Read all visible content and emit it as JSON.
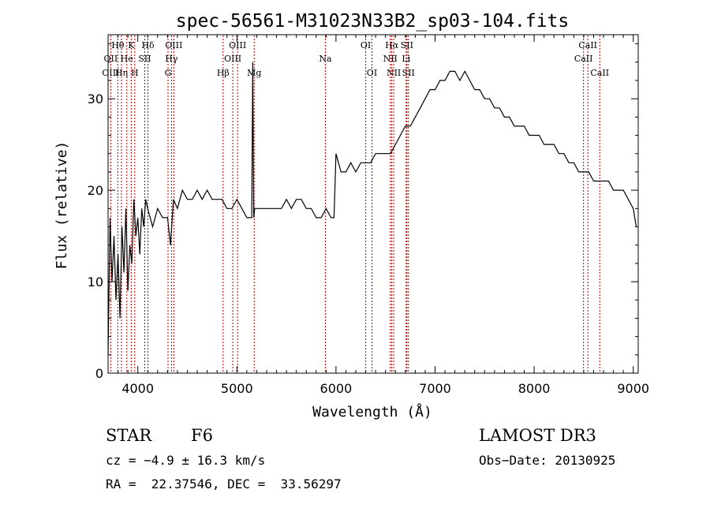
{
  "chart_data": {
    "type": "line",
    "title": "spec-56561-M31023N33B2_sp03-104.fits",
    "xlabel": "Wavelength (Å)",
    "ylabel": "Flux (relative)",
    "xlim": [
      3700,
      9050
    ],
    "ylim": [
      0,
      37
    ],
    "x_ticks": [
      4000,
      5000,
      6000,
      7000,
      8000,
      9000
    ],
    "y_ticks": [
      0,
      10,
      20,
      30
    ],
    "series": [
      {
        "name": "spectrum",
        "x": [
          3700,
          3720,
          3740,
          3760,
          3780,
          3800,
          3820,
          3840,
          3860,
          3880,
          3900,
          3920,
          3940,
          3960,
          3980,
          4000,
          4020,
          4040,
          4060,
          4080,
          4100,
          4150,
          4200,
          4250,
          4300,
          4330,
          4360,
          4400,
          4450,
          4500,
          4550,
          4600,
          4650,
          4700,
          4750,
          4800,
          4850,
          4900,
          4950,
          5000,
          5050,
          5100,
          5150,
          5160,
          5170,
          5180,
          5200,
          5250,
          5300,
          5350,
          5400,
          5450,
          5500,
          5550,
          5600,
          5650,
          5700,
          5750,
          5800,
          5850,
          5900,
          5950,
          5980,
          6000,
          6050,
          6100,
          6150,
          6200,
          6250,
          6300,
          6350,
          6400,
          6450,
          6500,
          6550,
          6600,
          6650,
          6700,
          6750,
          6800,
          6850,
          6900,
          6950,
          7000,
          7050,
          7100,
          7150,
          7200,
          7250,
          7300,
          7350,
          7400,
          7450,
          7500,
          7550,
          7600,
          7650,
          7700,
          7750,
          7800,
          7850,
          7900,
          7950,
          8000,
          8050,
          8100,
          8150,
          8200,
          8250,
          8300,
          8350,
          8400,
          8450,
          8500,
          8550,
          8600,
          8650,
          8700,
          8750,
          8800,
          8850,
          8900,
          8950,
          9000,
          9030
        ],
        "y": [
          2,
          17,
          10,
          15,
          8,
          13,
          6,
          16,
          11,
          18,
          9,
          14,
          12,
          19,
          15,
          17,
          13,
          18,
          16,
          19,
          18,
          16,
          18,
          17,
          17,
          14,
          19,
          18,
          20,
          19,
          19,
          20,
          19,
          20,
          19,
          19,
          19,
          18,
          18,
          19,
          18,
          17,
          17,
          34,
          17,
          18,
          18,
          18,
          18,
          18,
          18,
          18,
          19,
          18,
          19,
          19,
          18,
          18,
          17,
          17,
          18,
          17,
          17,
          24,
          22,
          22,
          23,
          22,
          23,
          23,
          23,
          24,
          24,
          24,
          24,
          25,
          26,
          27,
          27,
          28,
          29,
          30,
          31,
          31,
          32,
          32,
          33,
          33,
          32,
          33,
          32,
          31,
          31,
          30,
          30,
          29,
          29,
          28,
          28,
          27,
          27,
          27,
          26,
          26,
          26,
          25,
          25,
          25,
          24,
          24,
          23,
          23,
          22,
          22,
          22,
          21,
          21,
          21,
          21,
          20,
          20,
          20,
          19,
          18,
          16
        ]
      }
    ],
    "line_annotations": [
      {
        "label": "Hθ",
        "wavelength": 3798,
        "row": 1
      },
      {
        "label": "OII",
        "wavelength": 3727,
        "row": 2
      },
      {
        "label": "OIII",
        "wavelength": 3727,
        "row": 3
      },
      {
        "label": "K",
        "wavelength": 3934,
        "row": 1
      },
      {
        "label": "He",
        "wavelength": 3889,
        "row": 2
      },
      {
        "label": "Hη",
        "wavelength": 3835,
        "row": 3
      },
      {
        "label": "Hδ",
        "wavelength": 4102,
        "row": 1
      },
      {
        "label": "SII",
        "wavelength": 4070,
        "row": 2
      },
      {
        "label": "H",
        "wavelength": 3969,
        "row": 3
      },
      {
        "label": "OIII",
        "wavelength": 4363,
        "row": 1
      },
      {
        "label": "Hγ",
        "wavelength": 4340,
        "row": 2
      },
      {
        "label": "G",
        "wavelength": 4305,
        "row": 3
      },
      {
        "label": "OIII",
        "wavelength": 5007,
        "row": 1
      },
      {
        "label": "OIII",
        "wavelength": 4959,
        "row": 2
      },
      {
        "label": "Hβ",
        "wavelength": 4861,
        "row": 3
      },
      {
        "label": "Mg",
        "wavelength": 5175,
        "row": 3
      },
      {
        "label": "Na",
        "wavelength": 5893,
        "row": 2
      },
      {
        "label": "OI",
        "wavelength": 6300,
        "row": 1
      },
      {
        "label": "OI",
        "wavelength": 6363,
        "row": 3
      },
      {
        "label": "Hα",
        "wavelength": 6563,
        "row": 1
      },
      {
        "label": "NII",
        "wavelength": 6548,
        "row": 2
      },
      {
        "label": "NII",
        "wavelength": 6583,
        "row": 3
      },
      {
        "label": "SII",
        "wavelength": 6716,
        "row": 1
      },
      {
        "label": "Li",
        "wavelength": 6708,
        "row": 2
      },
      {
        "label": "SII",
        "wavelength": 6731,
        "row": 3
      },
      {
        "label": "CaII",
        "wavelength": 8542,
        "row": 1
      },
      {
        "label": "CaII",
        "wavelength": 8498,
        "row": 2
      },
      {
        "label": "CaII",
        "wavelength": 8662,
        "row": 3
      }
    ]
  },
  "info": {
    "class_label": "STAR",
    "subclass": "F6",
    "cz": "cz = −4.9 ± 16.3 km/s",
    "coords": "RA =  22.37546, DEC =  33.56297",
    "survey": "LAMOST DR3",
    "obs_date": "Obs−Date: 20130925"
  },
  "colors": {
    "line_marker": "#b00000",
    "spectrum": "#000000",
    "axis": "#000000"
  }
}
